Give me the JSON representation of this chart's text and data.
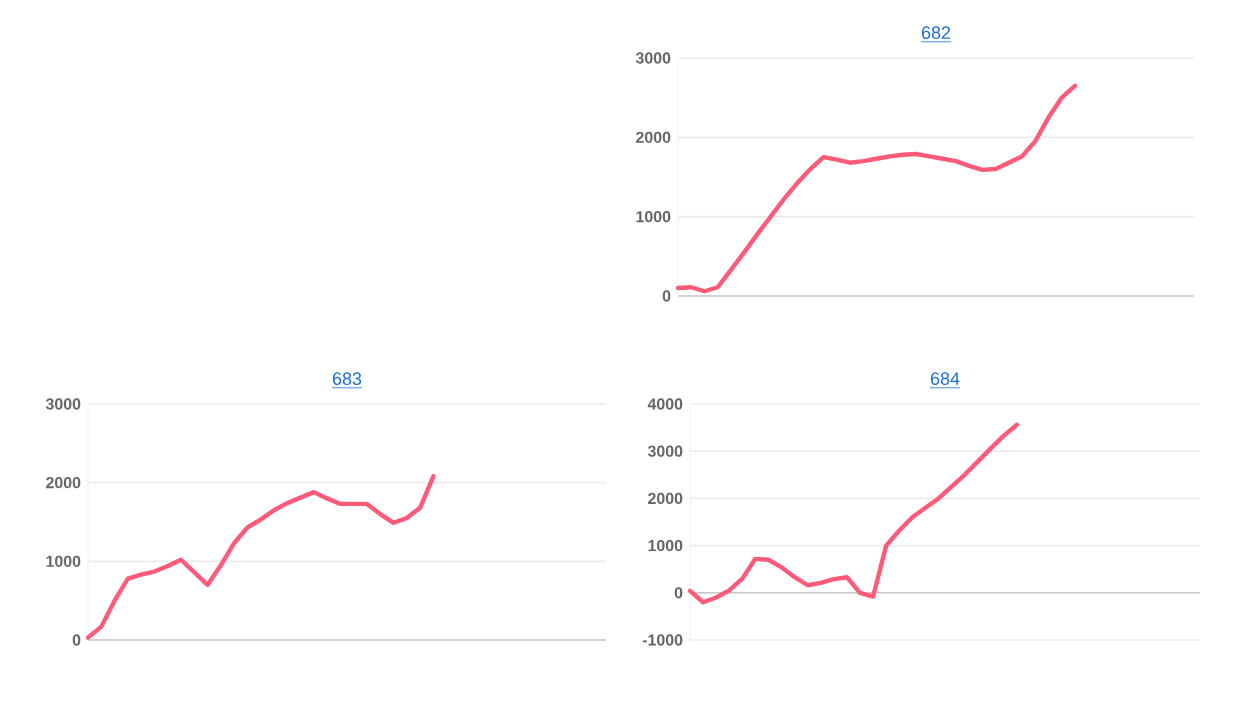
{
  "chart_data": [
    {
      "type": "line",
      "title": "682",
      "categories": [
        null,
        null,
        null,
        null,
        null,
        null,
        null,
        null,
        null,
        null,
        null,
        null,
        null,
        null,
        null,
        null,
        null,
        null,
        null,
        null,
        null,
        null,
        null,
        null,
        null,
        null,
        null,
        null,
        null,
        null,
        null,
        null,
        null,
        null,
        null,
        null,
        null,
        null,
        null,
        null
      ],
      "series": [
        {
          "color": "#ff5a78",
          "values": [
            100,
            110,
            60,
            110,
            330,
            550,
            780,
            1000,
            1220,
            1420,
            1600,
            1750,
            1720,
            1680,
            1700,
            1730,
            1760,
            1780,
            1790,
            1760,
            1730,
            1700,
            1640,
            1590,
            1600,
            1680,
            1760,
            1950,
            2250,
            2500,
            2650,
            null,
            null,
            null,
            null,
            null,
            null,
            null,
            null,
            null
          ]
        }
      ],
      "ylim": [
        0,
        3000
      ],
      "yticks": [
        0,
        1000,
        2000,
        3000
      ],
      "grid": "y",
      "tick_labels": "y",
      "marker": "none",
      "line_style": "solid"
    },
    {
      "type": "line",
      "title": "683",
      "categories": [
        null,
        null,
        null,
        null,
        null,
        null,
        null,
        null,
        null,
        null,
        null,
        null,
        null,
        null,
        null,
        null,
        null,
        null,
        null,
        null,
        null,
        null,
        null,
        null,
        null,
        null,
        null,
        null,
        null,
        null,
        null,
        null,
        null,
        null,
        null,
        null,
        null,
        null,
        null,
        null
      ],
      "series": [
        {
          "color": "#ff5a78",
          "values": [
            30,
            170,
            500,
            780,
            830,
            870,
            940,
            1020,
            860,
            700,
            950,
            1230,
            1430,
            1530,
            1650,
            1740,
            1810,
            1880,
            1800,
            1730,
            1730,
            1730,
            1600,
            1490,
            1550,
            1680,
            2080,
            null,
            null,
            null,
            null,
            null,
            null,
            null,
            null,
            null,
            null,
            null,
            null,
            null
          ]
        }
      ],
      "ylim": [
        0,
        3000
      ],
      "yticks": [
        0,
        1000,
        2000,
        3000
      ],
      "grid": "y",
      "tick_labels": "y",
      "marker": "none",
      "line_style": "solid"
    },
    {
      "type": "line",
      "title": "684",
      "categories": [
        null,
        null,
        null,
        null,
        null,
        null,
        null,
        null,
        null,
        null,
        null,
        null,
        null,
        null,
        null,
        null,
        null,
        null,
        null,
        null,
        null,
        null,
        null,
        null,
        null,
        null,
        null,
        null,
        null,
        null,
        null,
        null,
        null,
        null,
        null,
        null,
        null,
        null,
        null,
        null
      ],
      "series": [
        {
          "color": "#ff5a78",
          "values": [
            40,
            -200,
            -100,
            50,
            300,
            720,
            700,
            540,
            330,
            160,
            210,
            290,
            330,
            0,
            -80,
            1000,
            1320,
            1600,
            1800,
            2000,
            2250,
            2500,
            2780,
            3060,
            3330,
            3560,
            null,
            null,
            null,
            null,
            null,
            null,
            null,
            null,
            null,
            null,
            null,
            null,
            null,
            null
          ]
        }
      ],
      "ylim": [
        -1000,
        4000
      ],
      "yticks": [
        -1000,
        0,
        1000,
        2000,
        3000,
        4000
      ],
      "grid": "y",
      "tick_labels": "y",
      "marker": "none",
      "line_style": "solid"
    }
  ]
}
